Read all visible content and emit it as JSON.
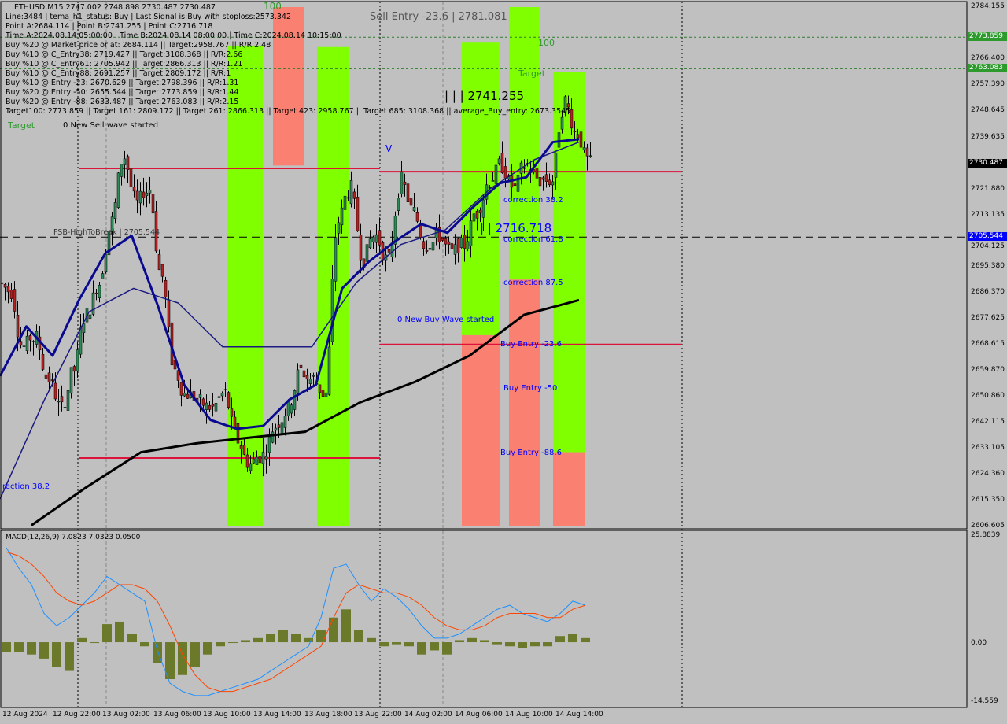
{
  "header": {
    "symbol_line": "ETHUSD,M15  2747.002 2748.898 2730.487 2730.487",
    "info_lines": [
      "Line:3484 | tema_h1_status: Buy | Last Signal is:Buy with stoploss:2573.342",
      "Point A:2684.114 | Point B:2741.255 | Point C:2716.718",
      "Time A:2024.08.14 05:00:00 | Time B:2024.08.14 08:00:00 | Time C:2024.08.14 10:15:00",
      "Buy %20 @ Market price or at: 2684.114 || Target:2958.767 || R/R:2.48",
      "Buy %10 @ C_Entry38: 2719.427 || Target:3108.368 || R/R:2.66",
      "Buy %10 @ C_Entry61: 2705.942 || Target:2866.313 || R/R:1.21",
      "Buy %10 @ C_Entry88: 2691.257 || Target:2809.172 || R/R:1",
      "Buy %10 @ Entry -23: 2670.629 || Target:2798.396 || R/R:1.31",
      "Buy %20 @ Entry -50: 2655.544 || Target:2773.859 || R/R:1.44",
      "Buy %20 @ Entry -88: 2633.487 || Target:2763.083 || R/R:2.15",
      "Target100: 2773.859 || Target 161: 2809.172 || Target 261: 2866.313 || Target 423: 2958.767 || Target 685: 3108.368 || average_Buy_entry: 2673.3545"
    ]
  },
  "annotations": {
    "sell_entry": "Sell Entry -23.6 | 2781.081",
    "label_100_left": "100",
    "label_100_right": "100",
    "target_left": "Target",
    "target_right": "Target",
    "new_sell_wave": "0 New Sell wave started",
    "point_b": "| | | 2741.255",
    "point_c": "| | 2716.718",
    "v_mark": "V",
    "correction_38": "correction 38.2",
    "correction_61": "correction 61.8",
    "correction_87": "correction 87.5",
    "new_buy_wave": "0 New Buy Wave started",
    "buy_entry_23": "Buy Entry -23.6",
    "buy_entry_50": "Buy Entry -50",
    "buy_entry_88": "Buy Entry -88.6",
    "rection_left": "rection 38.2",
    "fsb": "FSB-HighToBreak | 2705.544",
    "macd_title": "MACD(12,26,9) 7.0823 7.0323 0.0500"
  },
  "price_axis": {
    "ticks": [
      "2784.155",
      "2766.400",
      "2757.390",
      "2748.645",
      "2739.635",
      "2721.880",
      "2713.135",
      "2704.125",
      "2695.380",
      "2686.370",
      "2677.625",
      "2668.615",
      "2659.870",
      "2650.860",
      "2642.115",
      "2633.105",
      "2624.360",
      "2615.350",
      "2606.605"
    ],
    "tags": [
      {
        "value": "2773.859",
        "color": "#2e9a2e"
      },
      {
        "value": "2763.083",
        "color": "#2e9a2e"
      },
      {
        "value": "2730.487",
        "color": "#000000"
      },
      {
        "value": "2705.544",
        "color": "#0000ff"
      }
    ],
    "range": [
      2606.605,
      2784.155
    ]
  },
  "macd_axis": {
    "ticks": [
      "25.8839",
      "0.00",
      "-14.559"
    ],
    "range": [
      -14.559,
      25.8839
    ]
  },
  "time_axis": [
    "12 Aug 2024",
    "12 Aug 22:00",
    "13 Aug 02:00",
    "13 Aug 06:00",
    "13 Aug 10:00",
    "13 Aug 14:00",
    "13 Aug 18:00",
    "13 Aug 22:00",
    "14 Aug 02:00",
    "14 Aug 06:00",
    "14 Aug 10:00",
    "14 Aug 14:00"
  ],
  "chart_data": {
    "type": "candlestick",
    "symbol": "ETHUSD",
    "timeframe": "M15",
    "hourly_closes": [
      2687,
      2668,
      2671,
      2657,
      2647,
      2660,
      2679,
      2690,
      2711,
      2733,
      2717,
      2722,
      2692,
      2660,
      2652,
      2649,
      2647,
      2652,
      2636,
      2628,
      2631,
      2641,
      2647,
      2660,
      2657,
      2652,
      2711,
      2722,
      2698,
      2706,
      2698,
      2725,
      2714,
      2703,
      2706,
      2700,
      2703,
      2714,
      2725,
      2730,
      2722,
      2730,
      2725,
      2725,
      2752,
      2741,
      2730.487
    ],
    "ma_fast": [
      2658,
      2675,
      2665,
      2684,
      2700,
      2706,
      2682,
      2655,
      2643,
      2640,
      2641,
      2650,
      2655,
      2688,
      2697,
      2704,
      2710,
      2707,
      2716,
      2724,
      2726,
      2738,
      2739
    ],
    "ma_mid": [
      2616,
      2650,
      2680,
      2688,
      2683,
      2668,
      2668,
      2668,
      2690,
      2703,
      2708,
      2722,
      2732,
      2738
    ],
    "ma_slow": [
      2607,
      2620,
      2632,
      2635,
      2637,
      2639,
      2649,
      2656,
      2665,
      2679,
      2684
    ],
    "levels": {
      "fsb_high_to_break": 2705.544,
      "target_100": 2773.859,
      "target_161": 2763.083,
      "current": 2730.487,
      "red_levels": [
        2729.0,
        2727.9,
        2668.8,
        2630.0
      ]
    },
    "zones": [
      {
        "color": "#80ff00",
        "from": 2606.605,
        "to": 2771.0
      },
      {
        "color": "#fa8072",
        "from": 2730.0,
        "to": 2784.155
      },
      {
        "color": "#80ff00",
        "from": 2606.605,
        "to": 2770.5
      },
      {
        "color": "#80ff00",
        "from": 2672.0,
        "to": 2772.0
      },
      {
        "color": "#fa8072",
        "from": 2606.605,
        "to": 2672.0
      },
      {
        "color": "#80ff00",
        "from": 2691.0,
        "to": 2784.155
      },
      {
        "color": "#fa8072",
        "from": 2606.605,
        "to": 2691.0
      },
      {
        "color": "#80ff00",
        "from": 2632.0,
        "to": 2762.0
      },
      {
        "color": "#fa8072",
        "from": 2606.605,
        "to": 2632.0
      }
    ],
    "macd": {
      "histogram": [
        -2.3,
        -2.3,
        -3,
        -4,
        -6,
        -7,
        1,
        0,
        4.4,
        5,
        2,
        -1,
        -5,
        -9,
        -8,
        -6,
        -3,
        -1,
        0,
        0.5,
        1,
        2,
        3,
        2,
        1,
        3,
        6,
        8,
        3,
        1,
        -1,
        -0.5,
        -1,
        -3,
        -2,
        -3,
        0.5,
        1,
        0.5,
        -0.5,
        -1,
        -1.5,
        -1,
        -1,
        1.5,
        2,
        1
      ],
      "macd_line": [
        23,
        18,
        14,
        7,
        4,
        6,
        9,
        12,
        16,
        14,
        12,
        10,
        -2,
        -10,
        -12,
        -13,
        -13,
        -12,
        -11,
        -10,
        -9,
        -7,
        -5,
        -3,
        -1,
        6,
        18,
        19,
        14,
        10,
        13,
        11,
        8,
        4,
        1,
        1,
        2,
        4,
        6,
        8,
        9,
        7,
        6,
        5,
        7,
        10,
        9
      ],
      "signal_line": [
        22,
        21,
        19,
        16,
        12,
        10,
        9,
        10,
        12,
        14,
        14,
        13,
        10,
        4,
        -3,
        -8,
        -11,
        -12,
        -12,
        -11,
        -10,
        -9,
        -7,
        -5,
        -3,
        -1,
        6,
        12,
        14,
        13,
        12,
        12,
        11,
        9,
        6,
        4,
        3,
        3,
        4,
        6,
        7,
        7,
        7,
        6,
        6,
        8,
        9
      ],
      "values": {
        "macd": 7.0823,
        "signal": 7.0323,
        "hist": 0.05
      }
    }
  }
}
